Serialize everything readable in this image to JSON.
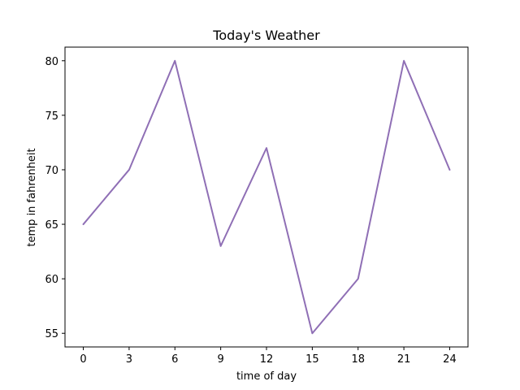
{
  "chart_data": {
    "type": "line",
    "title": "Today's Weather",
    "xlabel": "time of day",
    "ylabel": "temp in fahrenheit",
    "x": [
      0,
      3,
      6,
      9,
      12,
      15,
      18,
      21,
      24
    ],
    "series": [
      {
        "values": [
          65,
          70,
          80,
          63,
          72,
          55,
          60,
          80,
          70
        ],
        "color": "#8f6fb5"
      }
    ],
    "xticks": [
      "0",
      "3",
      "6",
      "9",
      "12",
      "15",
      "18",
      "21",
      "24"
    ],
    "yticks": [
      "55",
      "60",
      "65",
      "70",
      "75",
      "80"
    ],
    "xlim": [
      -1.2,
      25.2
    ],
    "ylim": [
      53.75,
      81.25
    ],
    "grid": false
  }
}
